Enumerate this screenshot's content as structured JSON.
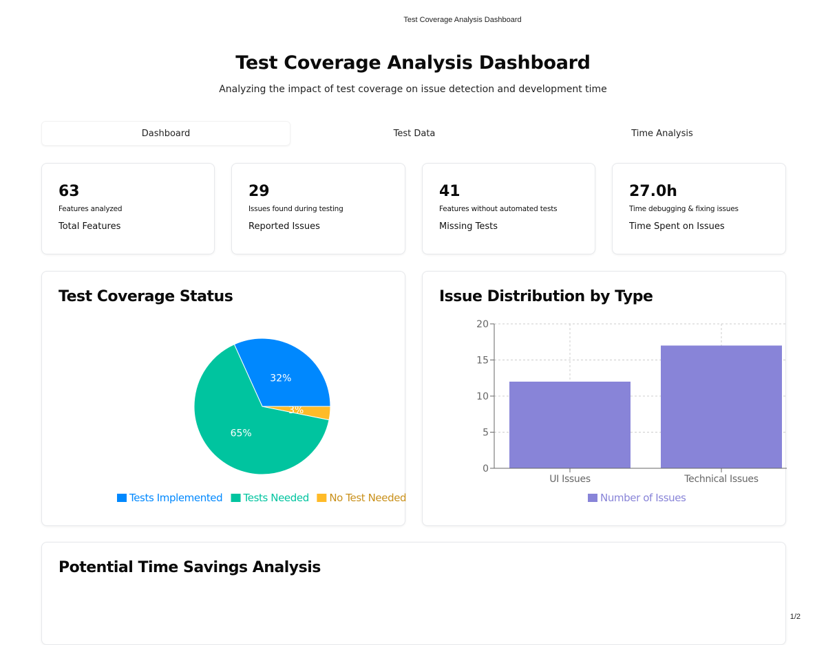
{
  "browser": {
    "title": "Test Coverage Analysis Dashboard",
    "page_number": "1/2"
  },
  "header": {
    "title": "Test Coverage Analysis Dashboard",
    "subtitle": "Analyzing the impact of test coverage on issue detection and development time"
  },
  "tabs": [
    {
      "label": "Dashboard",
      "active": true
    },
    {
      "label": "Test Data",
      "active": false
    },
    {
      "label": "Time Analysis",
      "active": false
    }
  ],
  "stats": [
    {
      "value": "63",
      "description": "Features analyzed",
      "title": "Total Features"
    },
    {
      "value": "29",
      "description": "Issues found during testing",
      "title": "Reported Issues"
    },
    {
      "value": "41",
      "description": "Features without automated tests",
      "title": "Missing Tests"
    },
    {
      "value": "27.0h",
      "description": "Time debugging & fixing issues",
      "title": "Time Spent on Issues"
    }
  ],
  "coverage_panel": {
    "title": "Test Coverage Status"
  },
  "issues_panel": {
    "title": "Issue Distribution by Type"
  },
  "savings_panel": {
    "title": "Potential Time Savings Analysis"
  },
  "chart_data": [
    {
      "type": "pie",
      "title": "Test Coverage Status",
      "slices": [
        {
          "label": "Tests Implemented",
          "value": 20,
          "percent_label": "32%",
          "color": "#0088FE"
        },
        {
          "label": "Tests Needed",
          "value": 41,
          "percent_label": "65%",
          "color": "#00C49F"
        },
        {
          "label": "No Test Needed",
          "value": 2,
          "percent_label": "3%",
          "color": "#FFBB28"
        }
      ],
      "legend_placement": "bottom"
    },
    {
      "type": "bar",
      "title": "Issue Distribution by Type",
      "categories": [
        "UI Issues",
        "Technical Issues"
      ],
      "series": [
        {
          "name": "Number of Issues",
          "values": [
            12,
            17
          ],
          "color": "#8884d8"
        }
      ],
      "ylim": [
        0,
        20
      ],
      "yticks": [
        0,
        5,
        10,
        15,
        20
      ],
      "grid": true,
      "legend_placement": "bottom"
    }
  ]
}
